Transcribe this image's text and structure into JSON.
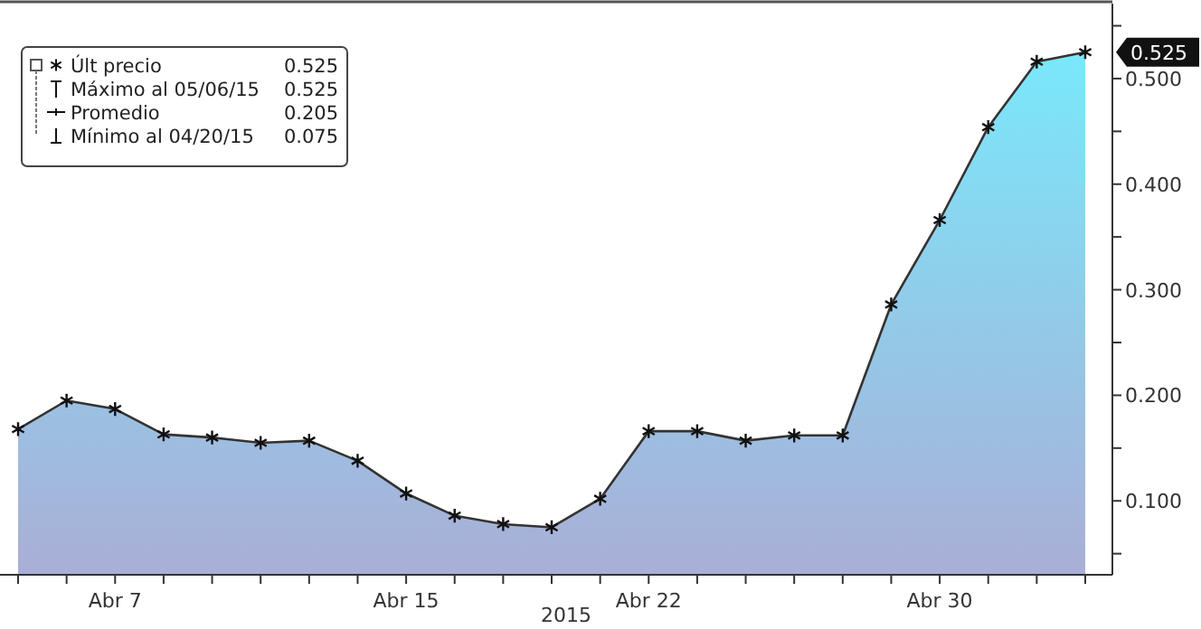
{
  "chart_data": {
    "type": "area",
    "xlabel": "2015",
    "categories": [
      null,
      null,
      "Abr 7",
      null,
      null,
      null,
      null,
      null,
      "Abr 15",
      null,
      null,
      null,
      null,
      "Abr 22",
      null,
      null,
      null,
      null,
      null,
      "Abr 30",
      null,
      null,
      null
    ],
    "series": [
      {
        "name": "Últ precio",
        "color": "#333333",
        "values": [
          0.168,
          0.195,
          0.187,
          0.163,
          0.16,
          0.155,
          0.157,
          0.138,
          0.107,
          0.086,
          0.078,
          0.075,
          0.102,
          0.166,
          0.166,
          0.157,
          0.162,
          0.162,
          0.286,
          0.366,
          0.454,
          0.516,
          0.525
        ]
      }
    ],
    "ylim": [
      0.03,
      0.571
    ],
    "yticks": [
      {
        "value": 0.05,
        "label": null
      },
      {
        "value": 0.1,
        "label": "0.100"
      },
      {
        "value": 0.15,
        "label": null
      },
      {
        "value": 0.2,
        "label": "0.200"
      },
      {
        "value": 0.25,
        "label": null
      },
      {
        "value": 0.3,
        "label": "0.300"
      },
      {
        "value": 0.35,
        "label": null
      },
      {
        "value": 0.4,
        "label": "0.400"
      },
      {
        "value": 0.45,
        "label": null
      },
      {
        "value": 0.5,
        "label": "0.500"
      },
      {
        "value": 0.55,
        "label": null
      }
    ],
    "marker": "cross",
    "legend": "top left",
    "grid": false,
    "annotations": [
      "0.525",
      "Máximo al 05/06/15",
      "0.525",
      "Promedio",
      "0.205",
      "Mínimo al 04/20/15",
      "0.075",
      "0.525"
    ]
  }
}
